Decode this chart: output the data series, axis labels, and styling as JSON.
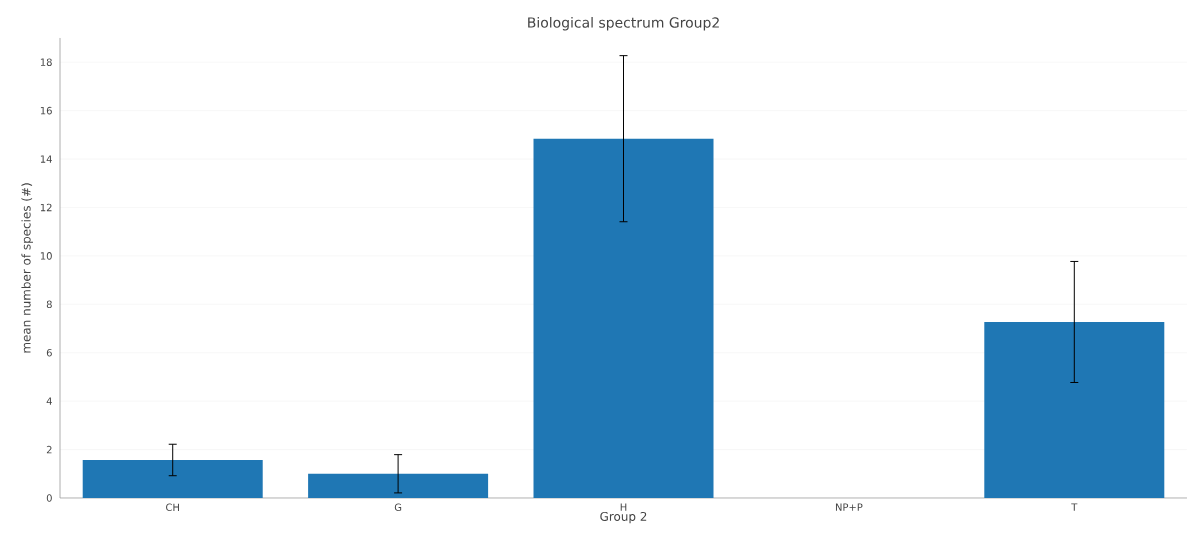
{
  "chart_data": {
    "type": "bar",
    "title": "Biological spectrum Group2",
    "xlabel": "Group 2",
    "ylabel": "mean number of species (#)",
    "categories": [
      "CH",
      "G",
      "H",
      "NP+P",
      "T"
    ],
    "values": [
      1.57,
      1.0,
      14.84,
      0,
      7.27
    ],
    "errors": [
      0.65,
      0.79,
      3.43,
      null,
      2.5
    ],
    "color": "#1f77b4",
    "ylim": [
      0,
      19
    ],
    "yticks": [
      0,
      2,
      4,
      6,
      8,
      10,
      12,
      14,
      16,
      18
    ],
    "grid": "y"
  }
}
